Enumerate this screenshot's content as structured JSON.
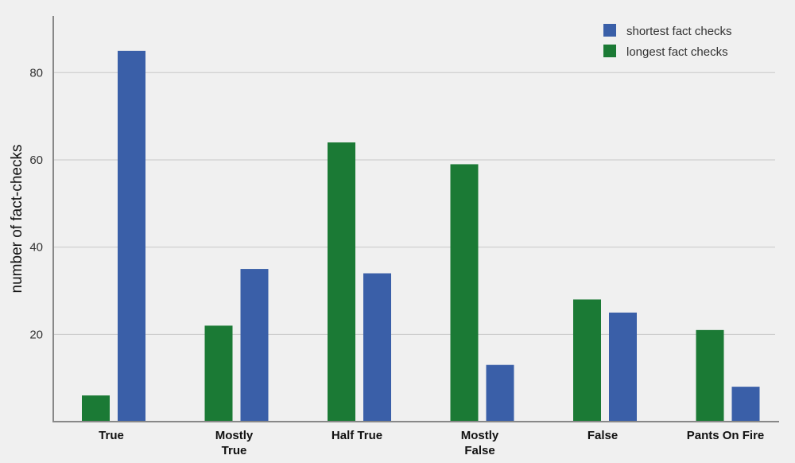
{
  "chart_data": {
    "type": "bar",
    "title": "",
    "xlabel": "",
    "ylabel": "number of fact-checks",
    "ylim": [
      0,
      93
    ],
    "yticks": [
      20,
      40,
      60,
      80
    ],
    "grid": true,
    "legend_position": "top-right",
    "categories": [
      "True",
      "Mostly True",
      "Half True",
      "Mostly False",
      "False",
      "Pants On Fire"
    ],
    "category_lines": [
      [
        "True"
      ],
      [
        "Mostly",
        "True"
      ],
      [
        "Half True"
      ],
      [
        "Mostly",
        "False"
      ],
      [
        "False"
      ],
      [
        "Pants On Fire"
      ]
    ],
    "series": [
      {
        "name": "longest fact checks",
        "color": "#1b7a35",
        "values": [
          6,
          22,
          64,
          59,
          28,
          21
        ]
      },
      {
        "name": "shortest fact checks",
        "color": "#3a5fa8",
        "values": [
          85,
          35,
          34,
          13,
          25,
          8
        ]
      }
    ],
    "legend": [
      {
        "name": "shortest fact checks",
        "color": "#3a5fa8"
      },
      {
        "name": "longest fact checks",
        "color": "#1b7a35"
      }
    ]
  }
}
